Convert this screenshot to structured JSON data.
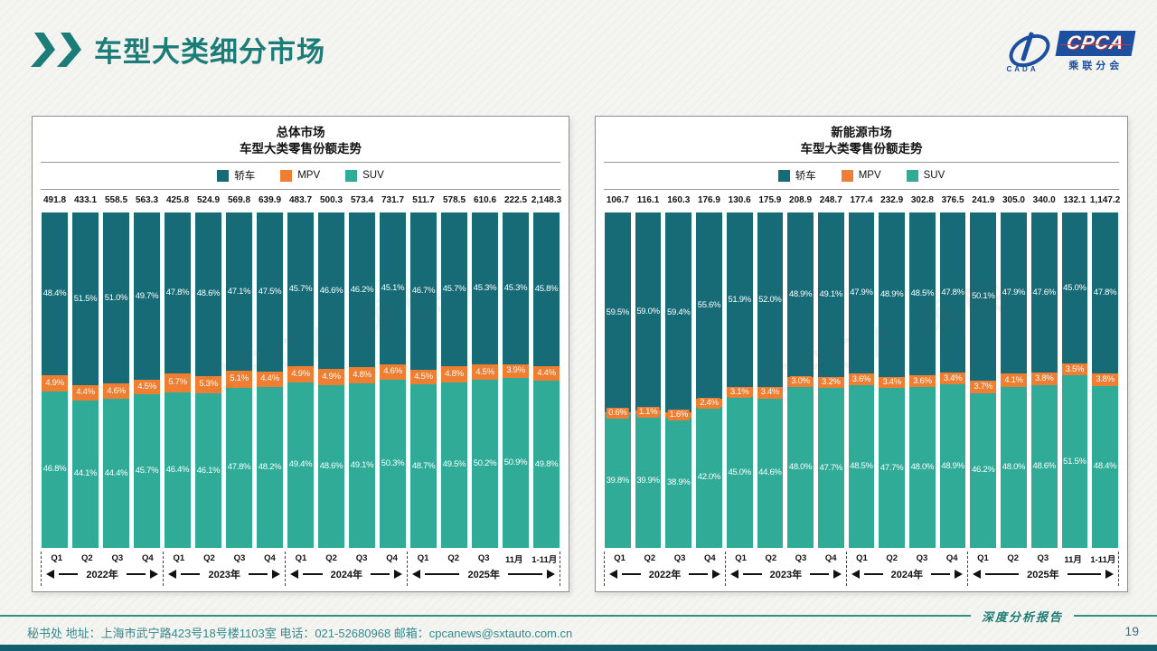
{
  "header": {
    "title": "车型大类细分市场",
    "logo": {
      "name": "CPCA",
      "sub": "乘联分会",
      "mark_text": "CADA"
    }
  },
  "watermark": "CPCA 乘联",
  "axis": {
    "quarters": [
      "Q1",
      "Q2",
      "Q3",
      "Q4",
      "Q1",
      "Q2",
      "Q3",
      "Q4",
      "Q1",
      "Q2",
      "Q3",
      "Q4",
      "Q1",
      "Q2",
      "Q3",
      "11月",
      "1-11月"
    ],
    "year_groups": [
      {
        "label": "2022年",
        "count": 4
      },
      {
        "label": "2023年",
        "count": 4
      },
      {
        "label": "2024年",
        "count": 4
      },
      {
        "label": "2025年",
        "count": 5
      }
    ]
  },
  "chart_data": [
    {
      "type": "bar",
      "stacked": true,
      "percent_stacked": true,
      "title": "总体市场",
      "subtitle": "车型大类零售份额走势",
      "legend_position": "top",
      "ylim": [
        0,
        100
      ],
      "unit": "%",
      "categories": [
        "2022-Q1",
        "2022-Q2",
        "2022-Q3",
        "2022-Q4",
        "2023-Q1",
        "2023-Q2",
        "2023-Q3",
        "2023-Q4",
        "2024-Q1",
        "2024-Q2",
        "2024-Q3",
        "2024-Q4",
        "2025-Q1",
        "2025-Q2",
        "2025-Q3",
        "2025-11月",
        "2025-1-11月"
      ],
      "totals": [
        "491.8",
        "433.1",
        "558.5",
        "563.3",
        "425.8",
        "524.9",
        "569.8",
        "639.9",
        "483.7",
        "500.3",
        "573.4",
        "731.7",
        "511.7",
        "578.5",
        "610.6",
        "222.5",
        "2,148.3"
      ],
      "series": [
        {
          "name": "轿车",
          "key": "sedan",
          "color": "#166b76",
          "values": [
            48.4,
            51.5,
            51.0,
            49.7,
            47.8,
            48.6,
            47.1,
            47.5,
            45.7,
            46.6,
            46.2,
            45.1,
            46.7,
            45.7,
            45.3,
            45.3,
            45.8
          ]
        },
        {
          "name": "MPV",
          "key": "mpv",
          "color": "#ee7e32",
          "values": [
            4.9,
            4.4,
            4.6,
            4.5,
            5.7,
            5.3,
            5.1,
            4.4,
            4.9,
            4.9,
            4.8,
            4.6,
            4.5,
            4.8,
            4.5,
            3.9,
            4.4
          ]
        },
        {
          "name": "SUV",
          "key": "suv",
          "color": "#2fab97",
          "values": [
            46.8,
            44.1,
            44.4,
            45.7,
            46.4,
            46.1,
            47.8,
            48.2,
            49.4,
            48.6,
            49.1,
            50.3,
            48.7,
            49.5,
            50.2,
            50.9,
            49.8
          ]
        }
      ]
    },
    {
      "type": "bar",
      "stacked": true,
      "percent_stacked": true,
      "title": "新能源市场",
      "subtitle": "车型大类零售份额走势",
      "legend_position": "top",
      "ylim": [
        0,
        100
      ],
      "unit": "%",
      "categories": [
        "2022-Q1",
        "2022-Q2",
        "2022-Q3",
        "2022-Q4",
        "2023-Q1",
        "2023-Q2",
        "2023-Q3",
        "2023-Q4",
        "2024-Q1",
        "2024-Q2",
        "2024-Q3",
        "2024-Q4",
        "2025-Q1",
        "2025-Q2",
        "2025-Q3",
        "2025-11月",
        "2025-1-11月"
      ],
      "totals": [
        "106.7",
        "116.1",
        "160.3",
        "176.9",
        "130.6",
        "175.9",
        "208.9",
        "248.7",
        "177.4",
        "232.9",
        "302.8",
        "376.5",
        "241.9",
        "305.0",
        "340.0",
        "132.1",
        "1,147.2"
      ],
      "series": [
        {
          "name": "轿车",
          "key": "sedan",
          "color": "#166b76",
          "values": [
            59.5,
            59.0,
            59.4,
            55.6,
            51.9,
            52.0,
            48.9,
            49.1,
            47.9,
            48.9,
            48.5,
            47.8,
            50.1,
            47.9,
            47.6,
            45.0,
            47.8
          ]
        },
        {
          "name": "MPV",
          "key": "mpv",
          "color": "#ee7e32",
          "values": [
            0.6,
            1.1,
            1.6,
            2.4,
            3.1,
            3.4,
            3.0,
            3.2,
            3.6,
            3.4,
            3.6,
            3.4,
            3.7,
            4.1,
            3.8,
            3.5,
            3.8
          ]
        },
        {
          "name": "SUV",
          "key": "suv",
          "color": "#2fab97",
          "values": [
            39.8,
            39.9,
            38.9,
            42.0,
            45.0,
            44.6,
            48.0,
            47.7,
            48.5,
            47.7,
            48.0,
            48.9,
            46.2,
            48.0,
            48.6,
            51.5,
            48.4
          ]
        }
      ]
    }
  ],
  "footer": {
    "contact": "秘书处   地址：上海市武宁路423号18号楼1103室  电话：021-52680968   邮箱：cpcanews@sxtauto.com.cn",
    "report_label": "深度分析报告",
    "page_number": "19"
  }
}
